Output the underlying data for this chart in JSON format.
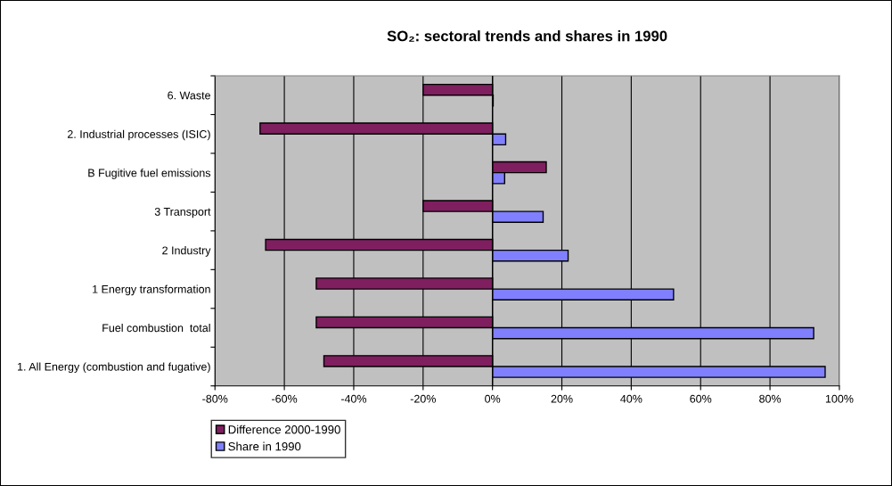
{
  "chart_data": {
    "type": "bar",
    "orientation": "horizontal",
    "title": "SO₂: sectoral trends and shares in 1990",
    "categories": [
      "6. Waste",
      "2. Industrial processes (ISIC)",
      "B Fugitive fuel emissions",
      "3 Transport",
      "2 Industry",
      "1 Energy transformation",
      "Fuel combustion  total",
      "1. All Energy (combustion and fugative)"
    ],
    "series": [
      {
        "name": "Difference 2000-1990",
        "color": "#7f1f5f",
        "values": [
          -20,
          -67,
          15.5,
          -20,
          -65.4,
          -50.8,
          -50.8,
          -48.6
        ]
      },
      {
        "name": "Share in 1990",
        "color": "#8080ff",
        "values": [
          0.2,
          3.8,
          3.5,
          14.6,
          21.8,
          52.2,
          92.6,
          95.9
        ]
      }
    ],
    "xlim": [
      -80,
      100
    ],
    "xticks": [
      {
        "value": -80,
        "label": "-80%"
      },
      {
        "value": -60,
        "label": "-60%"
      },
      {
        "value": -40,
        "label": "-40%"
      },
      {
        "value": -20,
        "label": "-20%"
      },
      {
        "value": 0,
        "label": "0%"
      },
      {
        "value": 20,
        "label": "20%"
      },
      {
        "value": 40,
        "label": "40%"
      },
      {
        "value": 60,
        "label": "60%"
      },
      {
        "value": 80,
        "label": "80%"
      },
      {
        "value": 100,
        "label": "100%"
      }
    ],
    "grid": "x",
    "legend": "bottom left"
  }
}
